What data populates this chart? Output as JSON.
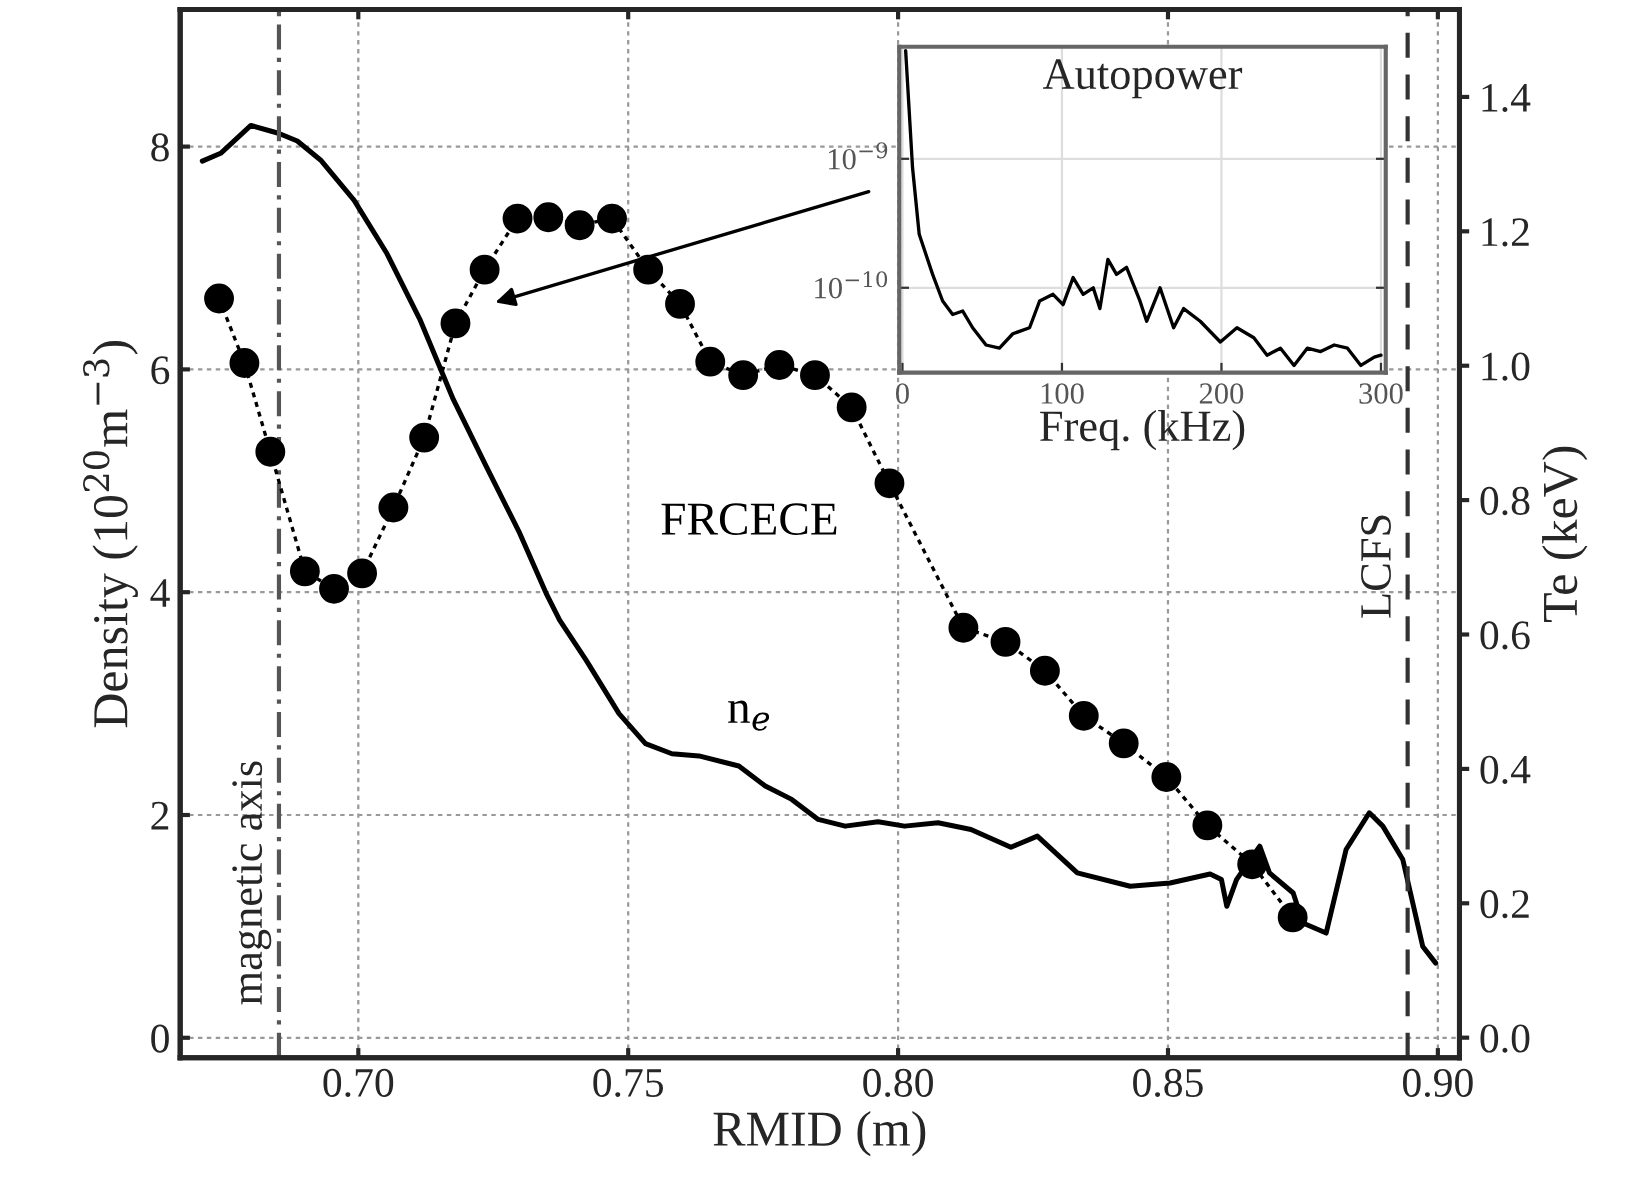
{
  "chart_data": [
    {
      "type": "line",
      "xlabel": "RMID (m)",
      "ylabel": "Density (10$^{20}$m$^{−3}$)",
      "y2label": "Te (keV)",
      "xlim": [
        0.667,
        0.904
      ],
      "xticks": [
        {
          "value": 0.7,
          "label": "0.70"
        },
        {
          "value": 0.75,
          "label": "0.75"
        },
        {
          "value": 0.8,
          "label": "0.80"
        },
        {
          "value": 0.85,
          "label": "0.85"
        },
        {
          "value": 0.9,
          "label": "0.90"
        }
      ],
      "ylim": [
        -0.18,
        9.23
      ],
      "yticks": [
        0,
        2,
        4,
        6,
        8
      ],
      "y2lim": [
        -0.03,
        1.53
      ],
      "y2ticks": [
        {
          "value": 0,
          "label": "0.0"
        },
        {
          "value": 0.2,
          "label": "0.2"
        },
        {
          "value": 0.4,
          "label": "0.4"
        },
        {
          "value": 0.6,
          "label": "0.6"
        },
        {
          "value": 0.8,
          "label": "0.8"
        },
        {
          "value": 1.0,
          "label": "1.0"
        },
        {
          "value": 1.2,
          "label": "1.2"
        },
        {
          "value": 1.4,
          "label": "1.4"
        }
      ],
      "grid": true,
      "series": [
        {
          "name": "n$_{e}$",
          "color": "#000000",
          "line_style": "solid",
          "marker": "none",
          "x": [
            0.6711,
            0.6745,
            0.6801,
            0.6852,
            0.6887,
            0.693,
            0.6992,
            0.7053,
            0.7114,
            0.7176,
            0.7237,
            0.7299,
            0.7348,
            0.7373,
            0.7422,
            0.7483,
            0.7532,
            0.7581,
            0.7631,
            0.7705,
            0.7754,
            0.7803,
            0.7852,
            0.7902,
            0.7963,
            0.8012,
            0.8074,
            0.8135,
            0.8209,
            0.8258,
            0.8332,
            0.843,
            0.8504,
            0.8578,
            0.8599,
            0.8609,
            0.8627,
            0.867,
            0.8688,
            0.8732,
            0.875,
            0.8793,
            0.883,
            0.8873,
            0.8898,
            0.8935,
            0.8972,
            0.8996
          ],
          "values": [
            7.87,
            7.94,
            8.19,
            8.12,
            8.05,
            7.88,
            7.52,
            7.04,
            6.45,
            5.73,
            5.13,
            4.53,
            3.99,
            3.75,
            3.39,
            2.91,
            2.64,
            2.55,
            2.53,
            2.44,
            2.26,
            2.14,
            1.96,
            1.9,
            1.94,
            1.9,
            1.93,
            1.87,
            1.71,
            1.81,
            1.48,
            1.36,
            1.39,
            1.47,
            1.42,
            1.18,
            1.42,
            1.72,
            1.48,
            1.3,
            1.03,
            0.94,
            1.69,
            2.02,
            1.9,
            1.6,
            0.82,
            0.67
          ]
        },
        {
          "name": "FRCECE",
          "color": "#000000",
          "axis": "y2",
          "line_style": "dotted",
          "marker": "circle",
          "x": [
            0.6742,
            0.6789,
            0.6837,
            0.6901,
            0.6955,
            0.7007,
            0.7065,
            0.7122,
            0.718,
            0.7234,
            0.7295,
            0.7352,
            0.741,
            0.747,
            0.7537,
            0.7596,
            0.7652,
            0.7713,
            0.778,
            0.7846,
            0.7914,
            0.7984,
            0.8121,
            0.8199,
            0.8272,
            0.8344,
            0.8418,
            0.8497,
            0.8573,
            0.8656,
            0.8731
          ],
          "values": [
            1.1,
            1.004,
            0.872,
            0.694,
            0.668,
            0.691,
            0.789,
            0.893,
            1.063,
            1.143,
            1.219,
            1.221,
            1.209,
            1.219,
            1.143,
            1.092,
            1.006,
            0.986,
            1.001,
            0.986,
            0.938,
            0.825,
            0.61,
            0.589,
            0.546,
            0.479,
            0.438,
            0.388,
            0.316,
            0.258,
            0.179
          ]
        }
      ],
      "ref_lines": [
        {
          "axis": "x",
          "value": 0.6853,
          "label": "magnetic axis",
          "line_style": "dashdot",
          "color": "#555555"
        },
        {
          "axis": "x",
          "value": 0.8944,
          "label": "LCFS",
          "line_style": "dashed",
          "color": "#333333"
        }
      ],
      "legend": false
    },
    {
      "type": "line",
      "title": "Autopower",
      "xlabel": "Freq. (kHz)",
      "log": "y",
      "xlim": [
        -2,
        303
      ],
      "xticks": [
        0,
        100,
        200,
        300
      ],
      "ylim": [
        2.2e-11,
        7.4e-09
      ],
      "yticks": [
        {
          "value": 1e-10,
          "label": "10$^{−10}$"
        },
        {
          "value": 1e-09,
          "label": "10$^{−9}$"
        }
      ],
      "grid": true,
      "series": [
        {
          "color": "#000000",
          "line_style": "solid",
          "marker": "none",
          "x": [
            2,
            6.3,
            10.5,
            18.9,
            25.2,
            31.5,
            37.8,
            44,
            52.4,
            60.8,
            69.2,
            79.7,
            86,
            94.4,
            100.7,
            107,
            113.3,
            119.6,
            123.8,
            128.8,
            134.2,
            140.5,
            148.9,
            153.1,
            161.5,
            170,
            176.3,
            186.7,
            199.3,
            209.7,
            220.3,
            228.6,
            237,
            245.5,
            253.8,
            262.2,
            270.7,
            279,
            287.4,
            295.8,
            300
          ],
          "values": [
            6.9e-09,
            8.6e-10,
            2.6e-10,
            1.27e-10,
            7.9e-11,
            6.2e-11,
            6.6e-11,
            4.9e-11,
            3.6e-11,
            3.4e-11,
            4.4e-11,
            4.9e-11,
            7.9e-11,
            8.9e-11,
            7.4e-11,
            1.2e-10,
            8.9e-11,
            1e-10,
            6.9e-11,
            1.66e-10,
            1.27e-10,
            1.44e-10,
            7.9e-11,
            5.5e-11,
            1e-10,
            4.9e-11,
            6.9e-11,
            5.5e-11,
            3.8e-11,
            4.9e-11,
            4.1e-11,
            3e-11,
            3.4e-11,
            2.5e-11,
            3.4e-11,
            3.2e-11,
            3.6e-11,
            3.4e-11,
            2.5e-11,
            2.9e-11,
            3e-11
          ]
        }
      ]
    }
  ]
}
